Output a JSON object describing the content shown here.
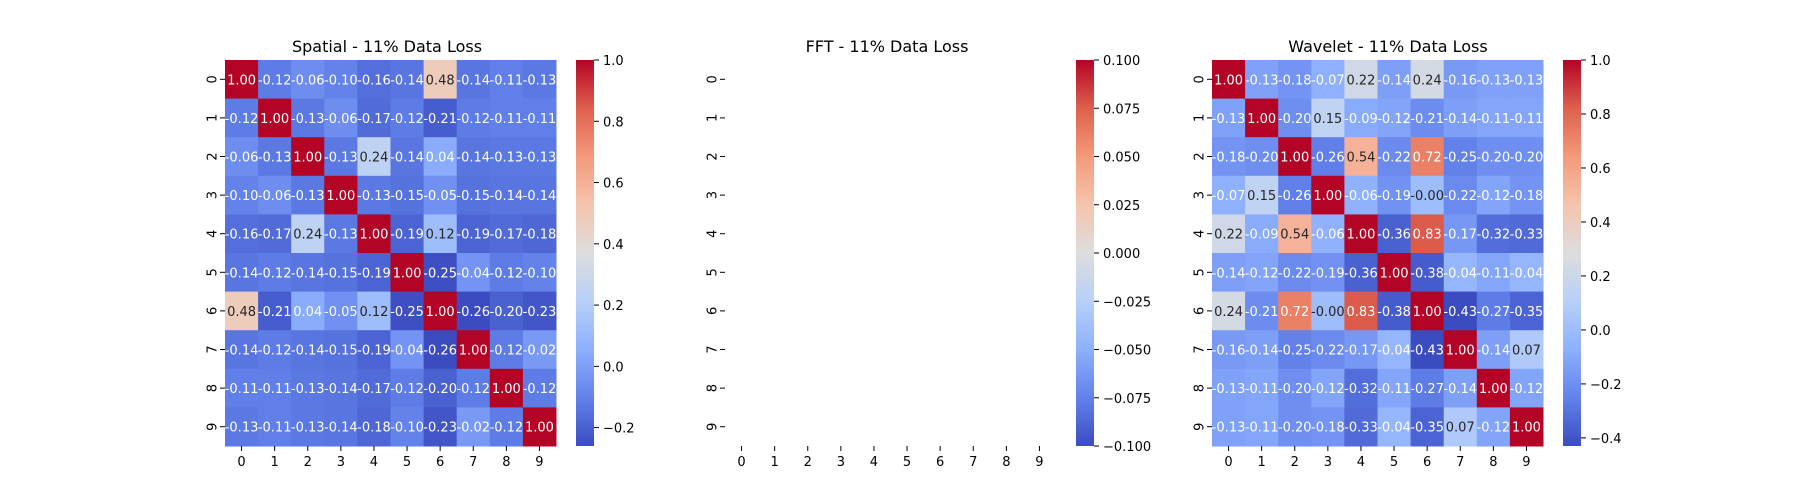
{
  "chart_data": [
    {
      "type": "heatmap",
      "title": "Spatial - 11% Data Loss",
      "x_ticks": [
        "0",
        "1",
        "2",
        "3",
        "4",
        "5",
        "6",
        "7",
        "8",
        "9"
      ],
      "y_ticks": [
        "0",
        "1",
        "2",
        "3",
        "4",
        "5",
        "6",
        "7",
        "8",
        "9"
      ],
      "matrix": [
        [
          1.0,
          -0.12,
          -0.06,
          -0.1,
          -0.16,
          -0.14,
          0.48,
          -0.14,
          -0.11,
          -0.13
        ],
        [
          -0.12,
          1.0,
          -0.13,
          -0.06,
          -0.17,
          -0.12,
          -0.21,
          -0.12,
          -0.11,
          -0.11
        ],
        [
          -0.06,
          -0.13,
          1.0,
          -0.13,
          0.24,
          -0.14,
          0.04,
          -0.14,
          -0.13,
          -0.13
        ],
        [
          -0.1,
          -0.06,
          -0.13,
          1.0,
          -0.13,
          -0.15,
          -0.05,
          -0.15,
          -0.14,
          -0.14
        ],
        [
          -0.16,
          -0.17,
          0.24,
          -0.13,
          1.0,
          -0.19,
          0.12,
          -0.19,
          -0.17,
          -0.18
        ],
        [
          -0.14,
          -0.12,
          -0.14,
          -0.15,
          -0.19,
          1.0,
          -0.25,
          -0.04,
          -0.12,
          -0.1
        ],
        [
          0.48,
          -0.21,
          0.04,
          -0.05,
          0.12,
          -0.25,
          1.0,
          -0.26,
          -0.2,
          -0.23
        ],
        [
          -0.14,
          -0.12,
          -0.14,
          -0.15,
          -0.19,
          -0.04,
          -0.26,
          1.0,
          -0.12,
          -0.02
        ],
        [
          -0.11,
          -0.11,
          -0.13,
          -0.14,
          -0.17,
          -0.12,
          -0.2,
          -0.12,
          1.0,
          -0.12
        ],
        [
          -0.13,
          -0.11,
          -0.13,
          -0.14,
          -0.18,
          -0.1,
          -0.23,
          -0.02,
          -0.12,
          1.0
        ]
      ],
      "colormap": "coolwarm",
      "vmin": -0.26,
      "vmax": 1.0,
      "colorbar_ticks": [
        "1.0",
        "0.8",
        "0.6",
        "0.4",
        "0.2",
        "0.0",
        "−0.2"
      ],
      "colorbar_tick_values": [
        1.0,
        0.8,
        0.6,
        0.4,
        0.2,
        0.0,
        -0.2
      ]
    },
    {
      "type": "heatmap",
      "title": "FFT - 11% Data Loss",
      "x_ticks": [
        "0",
        "1",
        "2",
        "3",
        "4",
        "5",
        "6",
        "7",
        "8",
        "9"
      ],
      "y_ticks": [
        "0",
        "1",
        "2",
        "3",
        "4",
        "5",
        "6",
        "7",
        "8",
        "9"
      ],
      "matrix": [],
      "colormap": "coolwarm",
      "vmin": -0.1,
      "vmax": 0.1,
      "colorbar_ticks": [
        "0.100",
        "0.075",
        "0.050",
        "0.025",
        "0.000",
        "−0.025",
        "−0.050",
        "−0.075",
        "−0.100"
      ],
      "colorbar_tick_values": [
        0.1,
        0.075,
        0.05,
        0.025,
        0.0,
        -0.025,
        -0.05,
        -0.075,
        -0.1
      ]
    },
    {
      "type": "heatmap",
      "title": "Wavelet - 11% Data Loss",
      "x_ticks": [
        "0",
        "1",
        "2",
        "3",
        "4",
        "5",
        "6",
        "7",
        "8",
        "9"
      ],
      "y_ticks": [
        "0",
        "1",
        "2",
        "3",
        "4",
        "5",
        "6",
        "7",
        "8",
        "9"
      ],
      "matrix": [
        [
          1.0,
          -0.13,
          -0.18,
          -0.07,
          0.22,
          -0.14,
          0.24,
          -0.16,
          -0.13,
          -0.13
        ],
        [
          -0.13,
          1.0,
          -0.2,
          0.15,
          -0.09,
          -0.12,
          -0.21,
          -0.14,
          -0.11,
          -0.11
        ],
        [
          -0.18,
          -0.2,
          1.0,
          -0.26,
          0.54,
          -0.22,
          0.72,
          -0.25,
          -0.2,
          -0.2
        ],
        [
          -0.07,
          0.15,
          -0.26,
          1.0,
          -0.06,
          -0.19,
          -0.0,
          -0.22,
          -0.12,
          -0.18
        ],
        [
          0.22,
          -0.09,
          0.54,
          -0.06,
          1.0,
          -0.36,
          0.83,
          -0.17,
          -0.32,
          -0.33
        ],
        [
          -0.14,
          -0.12,
          -0.22,
          -0.19,
          -0.36,
          1.0,
          -0.38,
          -0.04,
          -0.11,
          -0.04
        ],
        [
          0.24,
          -0.21,
          0.72,
          -0.0,
          0.83,
          -0.38,
          1.0,
          -0.43,
          -0.27,
          -0.35
        ],
        [
          -0.16,
          -0.14,
          -0.25,
          -0.22,
          -0.17,
          -0.04,
          -0.43,
          1.0,
          -0.14,
          0.07
        ],
        [
          -0.13,
          -0.11,
          -0.2,
          -0.12,
          -0.32,
          -0.11,
          -0.27,
          -0.14,
          1.0,
          -0.12
        ],
        [
          -0.13,
          -0.11,
          -0.2,
          -0.18,
          -0.33,
          -0.04,
          -0.35,
          0.07,
          -0.12,
          1.0
        ]
      ],
      "colormap": "coolwarm",
      "vmin": -0.43,
      "vmax": 1.0,
      "colorbar_ticks": [
        "1.0",
        "0.8",
        "0.6",
        "0.4",
        "0.2",
        "0.0",
        "−0.2",
        "−0.4"
      ],
      "colorbar_tick_values": [
        1.0,
        0.8,
        0.6,
        0.4,
        0.2,
        0.0,
        -0.2,
        -0.4
      ]
    }
  ]
}
